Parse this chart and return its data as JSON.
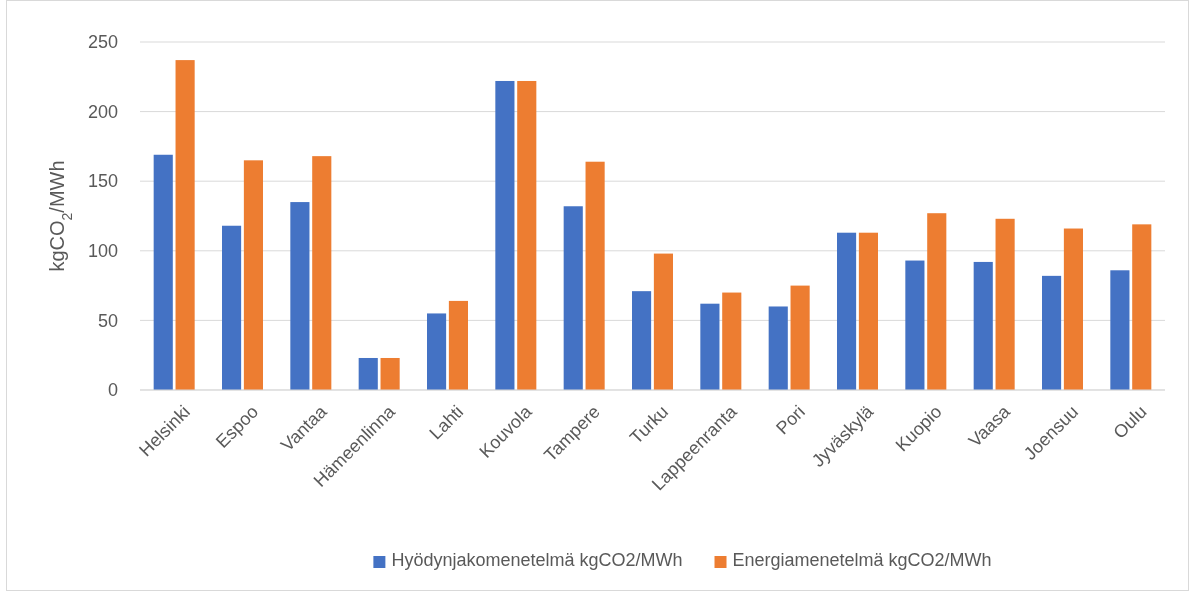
{
  "chart_data": {
    "type": "bar",
    "ylabel": "kgCO$_{2}$/MWh",
    "categories": [
      "Helsinki",
      "Espoo",
      "Vantaa",
      "Hämeenlinna",
      "Lahti",
      "Kouvola",
      "Tampere",
      "Turku",
      "Lappeenranta",
      "Pori",
      "Jyväskylä",
      "Kuopio",
      "Vaasa",
      "Joensuu",
      "Oulu"
    ],
    "series": [
      {
        "name": "Hyödynjakomenetelmä kgCO2/MWh",
        "color": "#4472c4",
        "values": [
          169,
          118,
          135,
          23,
          55,
          222,
          132,
          71,
          62,
          60,
          113,
          93,
          92,
          82,
          86
        ]
      },
      {
        "name": "Energiamenetelmä kgCO2/MWh",
        "color": "#ed7d31",
        "values": [
          237,
          165,
          168,
          23,
          64,
          222,
          164,
          98,
          70,
          75,
          113,
          127,
          123,
          116,
          119
        ]
      }
    ],
    "ylim": [
      0,
      250
    ],
    "yticks": [
      0,
      50,
      100,
      150,
      200,
      250
    ],
    "grid": "y",
    "legend": "bottom"
  }
}
